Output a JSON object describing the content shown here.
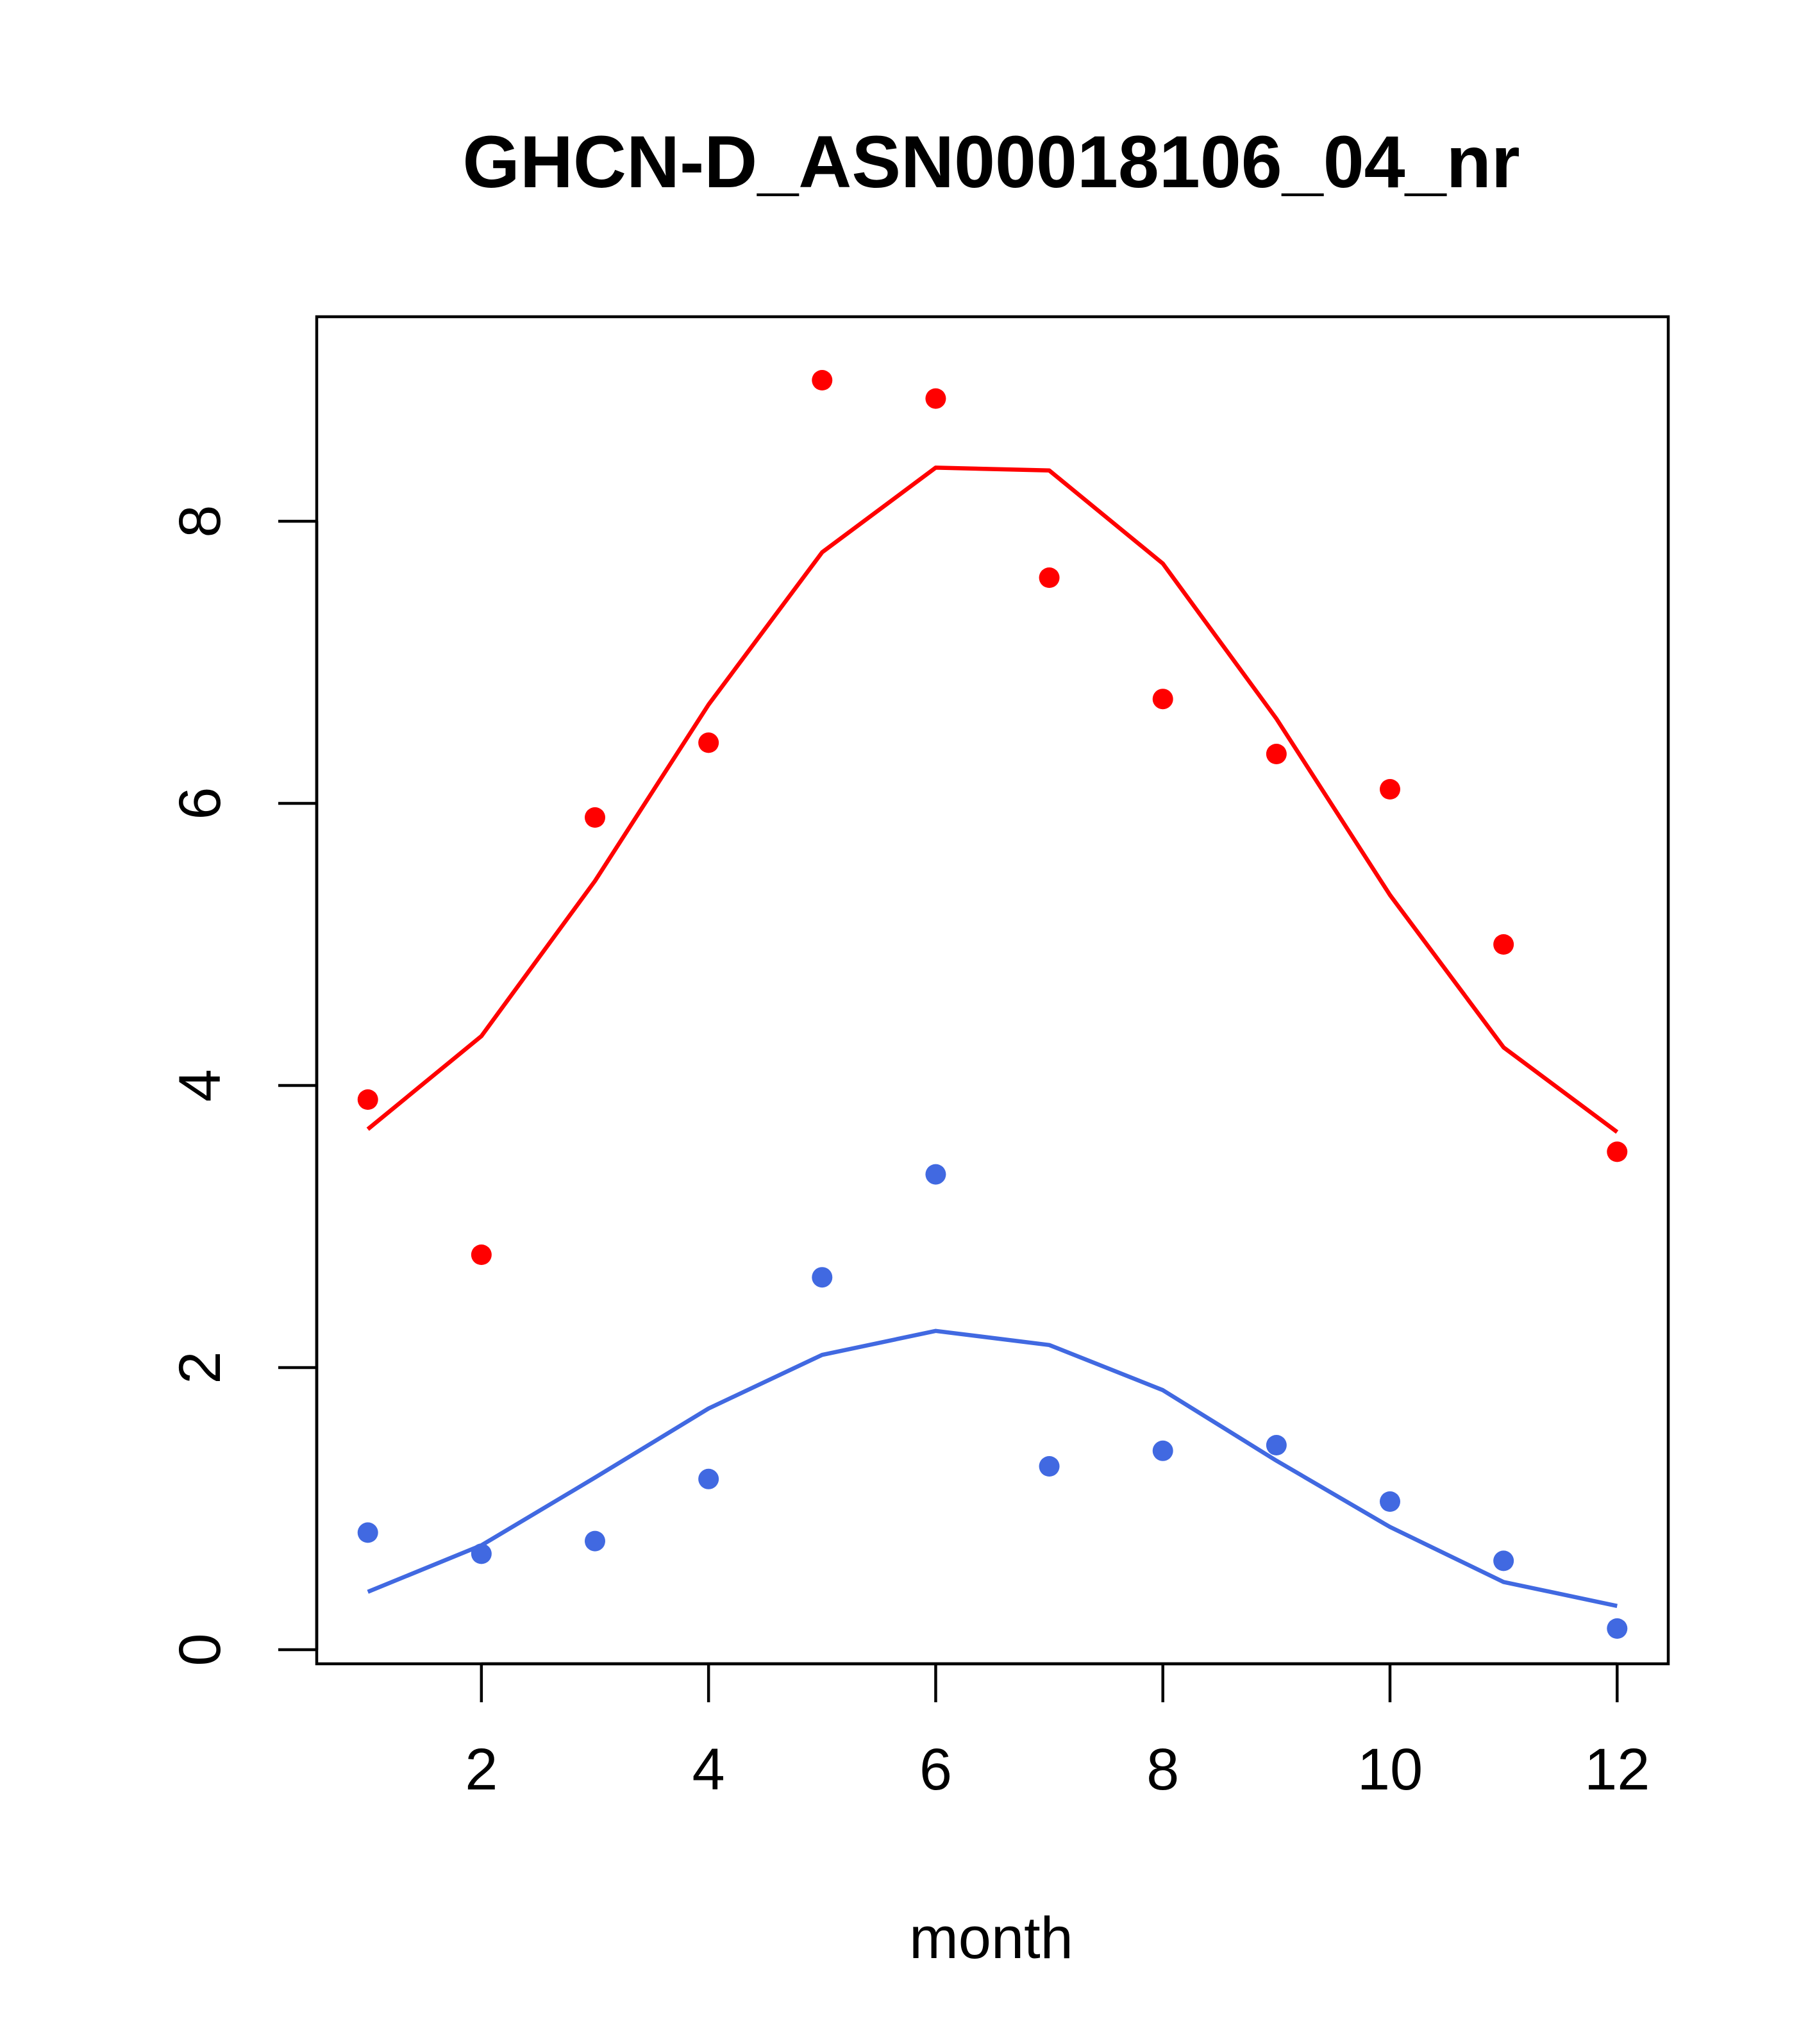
{
  "chart_data": {
    "type": "line",
    "title": "GHCN-D_ASN00018106_04_nr",
    "xlabel": "month",
    "ylabel": "",
    "xlim": [
      0.55,
      12.45
    ],
    "ylim": [
      -0.1,
      9.45
    ],
    "xticks": [
      2,
      4,
      6,
      8,
      10,
      12
    ],
    "yticks": [
      0,
      2,
      4,
      6,
      8
    ],
    "grid": false,
    "series": [
      {
        "name": "red observed",
        "kind": "points",
        "color": "#ff0000",
        "x": [
          1,
          2,
          3,
          4,
          5,
          6,
          7,
          8,
          9,
          10,
          11,
          12
        ],
        "values": [
          3.9,
          2.8,
          5.9,
          6.43,
          9.0,
          8.87,
          7.6,
          6.74,
          6.35,
          6.1,
          5.0,
          3.53
        ]
      },
      {
        "name": "red fitted",
        "kind": "line",
        "color": "#ff0000",
        "x": [
          1,
          2,
          3,
          4,
          5,
          6,
          7,
          8,
          9,
          10,
          11,
          12
        ],
        "values": [
          3.69,
          4.35,
          5.45,
          6.7,
          7.78,
          8.38,
          8.36,
          7.7,
          6.6,
          5.35,
          4.27,
          3.67
        ]
      },
      {
        "name": "blue observed",
        "kind": "points",
        "color": "#4169e1",
        "x": [
          1,
          2,
          3,
          4,
          5,
          6,
          7,
          8,
          9,
          10,
          11,
          12
        ],
        "values": [
          0.83,
          0.68,
          0.77,
          1.21,
          2.64,
          3.37,
          1.3,
          1.41,
          1.45,
          1.05,
          0.63,
          0.15
        ]
      },
      {
        "name": "blue fitted",
        "kind": "line",
        "color": "#4169e1",
        "x": [
          1,
          2,
          3,
          4,
          5,
          6,
          7,
          8,
          9,
          10,
          11,
          12
        ],
        "values": [
          0.41,
          0.74,
          1.22,
          1.71,
          2.09,
          2.26,
          2.16,
          1.84,
          1.34,
          0.87,
          0.48,
          0.31
        ]
      }
    ]
  }
}
